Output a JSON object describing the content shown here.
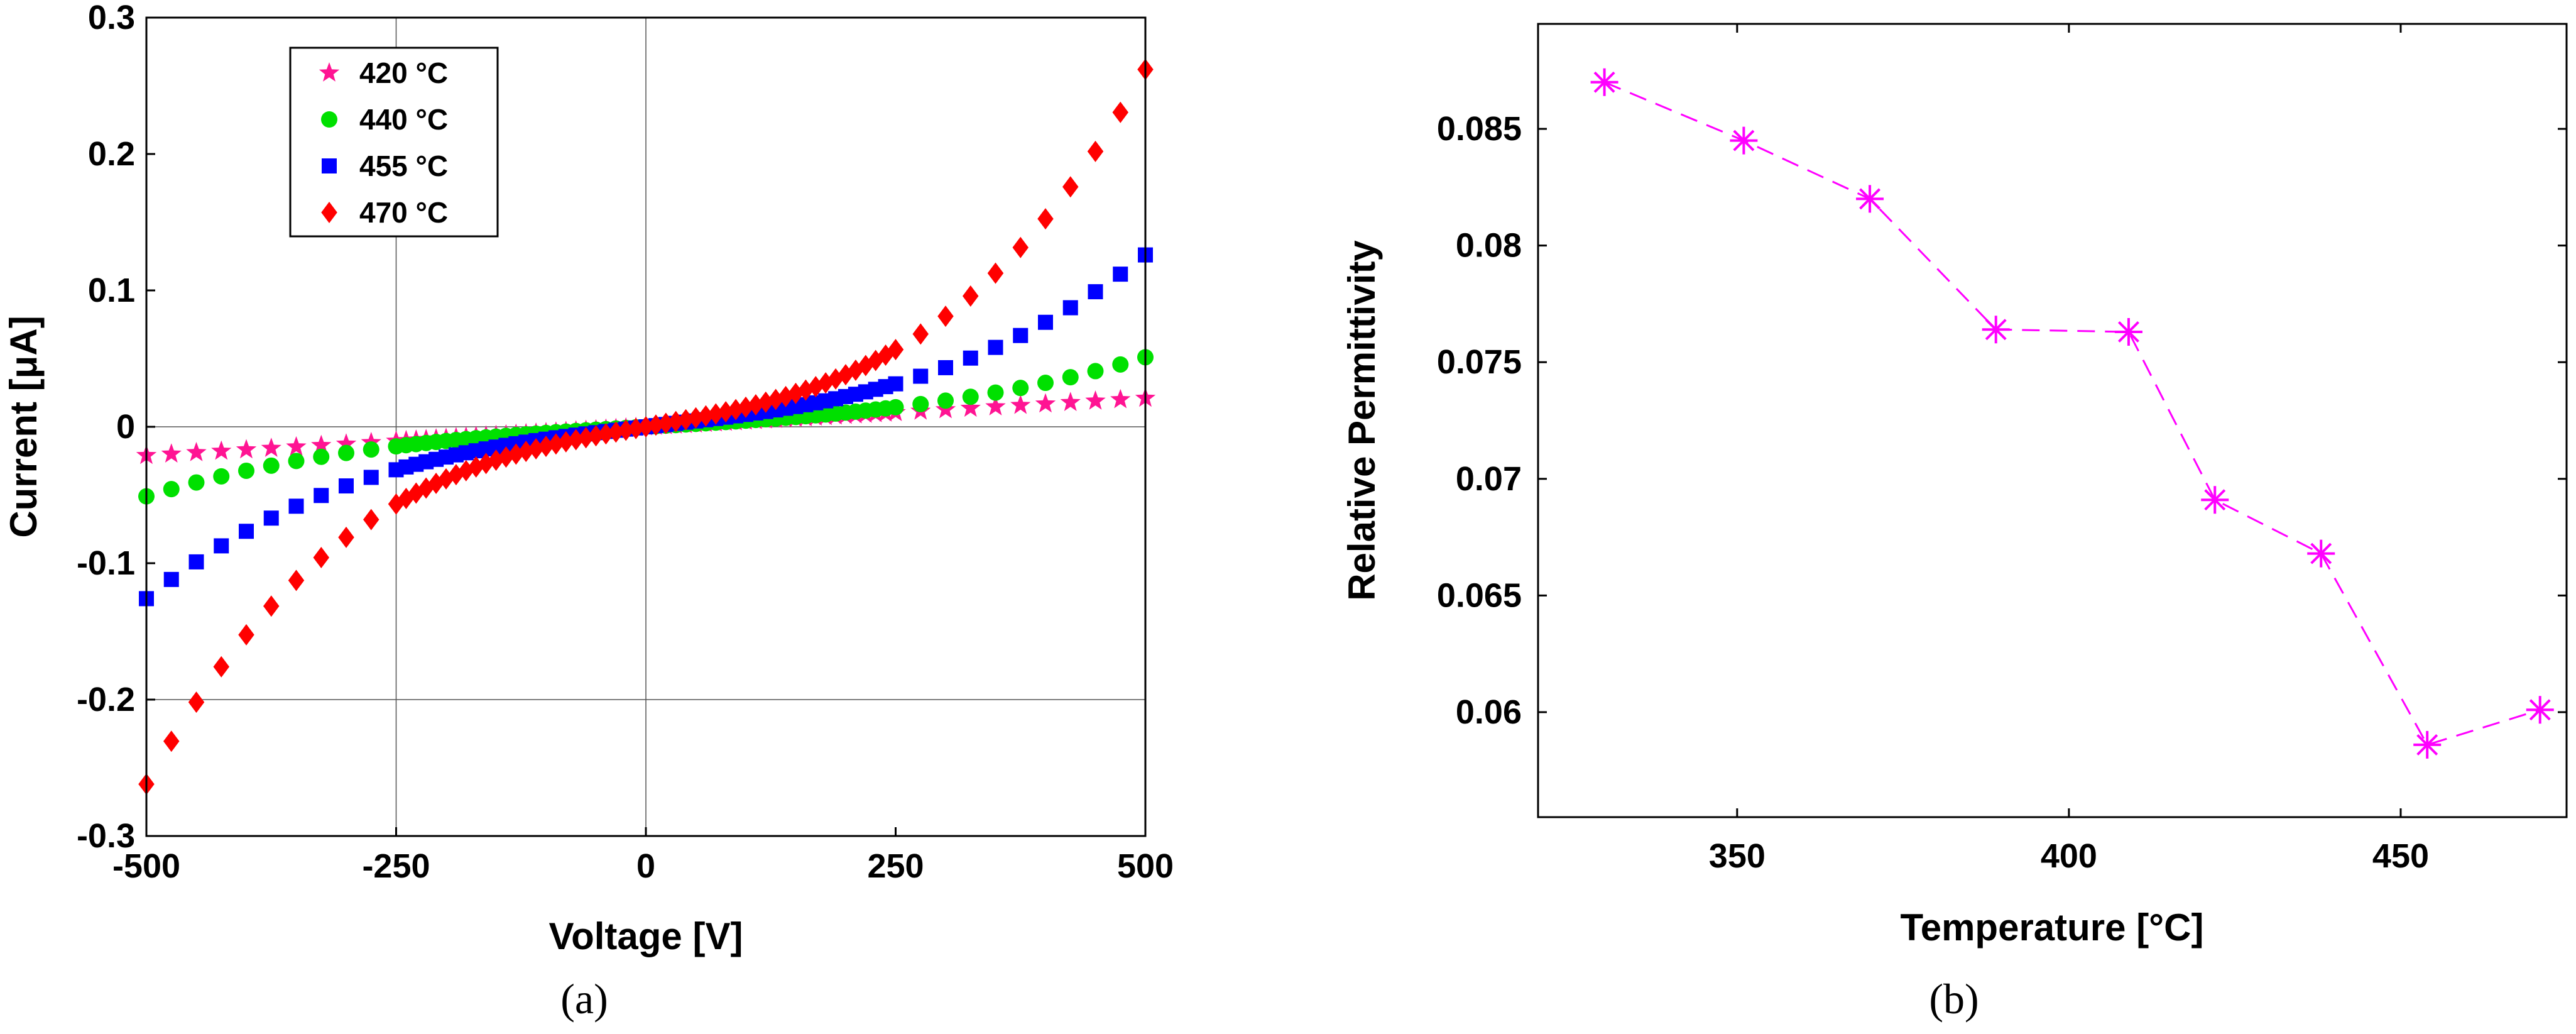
{
  "chart_data": [
    {
      "type": "scatter",
      "caption": "(a)",
      "xlabel": "Voltage [V]",
      "ylabel": "Current [μA]",
      "xlim": [
        -500,
        500
      ],
      "ylim": [
        -0.3,
        0.3
      ],
      "xticks": [
        -500,
        -250,
        0,
        250,
        500
      ],
      "xtick_labels": [
        "-500",
        "-250",
        "0",
        "250",
        "500"
      ],
      "yticks": [
        -0.3,
        -0.2,
        -0.1,
        0,
        0.1,
        0.2,
        0.3
      ],
      "ytick_labels": [
        "-0.3",
        "-0.2",
        "-0.1",
        "0",
        "0.1",
        "0.2",
        "0.3"
      ],
      "gridlines": {
        "x": [
          -250,
          0
        ],
        "y": [
          -0.2,
          0
        ]
      },
      "legend_position": "top-left",
      "x": [
        -500,
        -475,
        -450,
        -425,
        -400,
        -375,
        -350,
        -325,
        -300,
        -275,
        -250,
        -240,
        -230,
        -220,
        -210,
        -200,
        -190,
        -180,
        -170,
        -160,
        -150,
        -140,
        -130,
        -120,
        -110,
        -100,
        -90,
        -80,
        -70,
        -60,
        -50,
        -40,
        -30,
        -20,
        -10,
        0,
        10,
        20,
        30,
        40,
        50,
        60,
        70,
        80,
        90,
        100,
        110,
        120,
        130,
        140,
        150,
        160,
        170,
        180,
        190,
        200,
        210,
        220,
        230,
        240,
        250,
        275,
        300,
        325,
        350,
        375,
        400,
        425,
        450,
        475,
        500
      ],
      "series": [
        {
          "name": "420 °C",
          "color": "#ff1493",
          "marker": "star",
          "y_end": 0.021,
          "shape_a": 1.2,
          "shape_b": 0.0
        },
        {
          "name": "440 °C",
          "color": "#00e000",
          "marker": "circle",
          "y_end": 0.051,
          "shape_a": 0.5,
          "shape_b": 0.7
        },
        {
          "name": "455 °C",
          "color": "#0000ff",
          "marker": "square",
          "y_end": 0.126,
          "shape_a": 0.45,
          "shape_b": 0.9
        },
        {
          "name": "470 °C",
          "color": "#ff0000",
          "marker": "diamond",
          "y_end": 0.262,
          "shape_a": 0.45,
          "shape_b": 1.4
        }
      ]
    },
    {
      "type": "line",
      "caption": "(b)",
      "xlabel": "Temperature [°C]",
      "ylabel": "Relative Permittivity",
      "xlim": [
        320,
        475
      ],
      "ylim": [
        0.0555,
        0.0895
      ],
      "xticks": [
        350,
        400,
        450
      ],
      "xtick_labels": [
        "350",
        "400",
        "450"
      ],
      "yticks": [
        0.06,
        0.065,
        0.07,
        0.075,
        0.08,
        0.085
      ],
      "ytick_labels": [
        "0.06",
        "0.065",
        "0.07",
        "0.075",
        "0.08",
        "0.085"
      ],
      "series": [
        {
          "name": "Relative Permittivity",
          "color": "#ff00ff",
          "marker": "asterisk",
          "line_style": "dashed",
          "x": [
            330,
            351,
            370,
            389,
            409,
            422,
            438,
            454,
            471
          ],
          "y": [
            0.087,
            0.0845,
            0.082,
            0.0764,
            0.0763,
            0.0691,
            0.0668,
            0.0586,
            0.0601
          ]
        }
      ]
    }
  ]
}
